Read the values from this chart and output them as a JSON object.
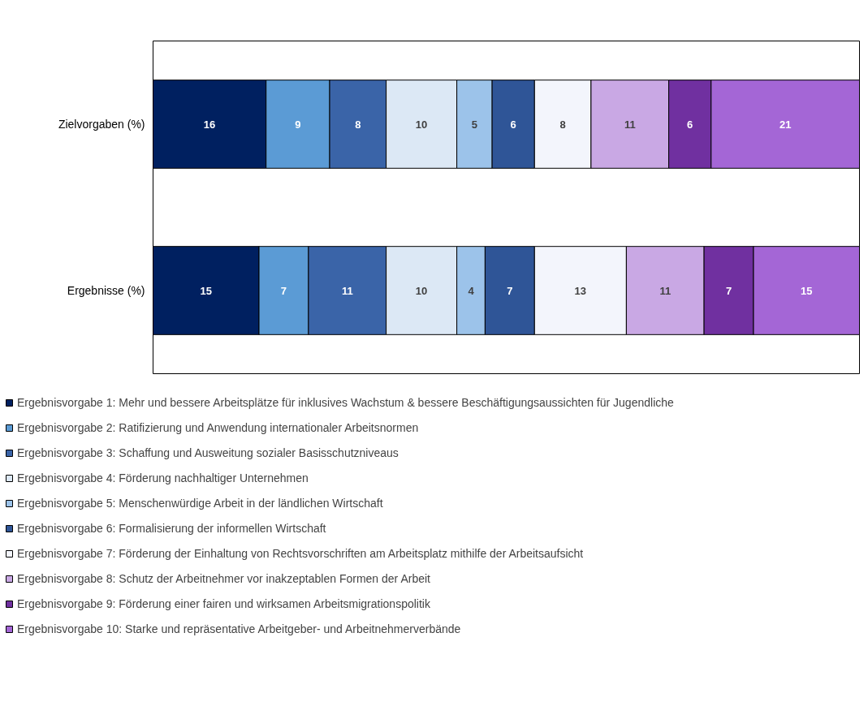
{
  "chart_data": {
    "type": "bar",
    "orientation": "horizontal",
    "stacked": true,
    "data_labels": true,
    "legend": "bottom",
    "categories": [
      "Zielvorgaben (%)",
      "Ergebnisse (%)"
    ],
    "series": [
      {
        "name": "Ergebnisvorgabe 1: Mehr und bessere Arbeitsplätze für inklusives Wachstum & bessere Beschäftigungsaussichten für Jugendliche",
        "color": "#002060",
        "values": [
          16,
          15
        ]
      },
      {
        "name": "Ergebnisvorgabe 2: Ratifizierung und Anwendung internationaler Arbeitsnormen",
        "color": "#5b9bd5",
        "values": [
          9,
          7
        ]
      },
      {
        "name": "Ergebnisvorgabe 3: Schaffung und Ausweitung sozialer Basisschutzniveaus",
        "color": "#3a64a8",
        "values": [
          8,
          11
        ]
      },
      {
        "name": "Ergebnisvorgabe 4: Förderung nachhaltiger Unternehmen",
        "color": "#dce8f5",
        "values": [
          10,
          10
        ]
      },
      {
        "name": "Ergebnisvorgabe 5: Menschenwürdige Arbeit in der ländlichen Wirtschaft",
        "color": "#9cc3ea",
        "values": [
          5,
          4
        ]
      },
      {
        "name": "Ergebnisvorgabe 6: Formalisierung der informellen Wirtschaft",
        "color": "#2f5597",
        "values": [
          6,
          7
        ]
      },
      {
        "name": "Ergebnisvorgabe 7: Förderung der Einhaltung von Rechtsvorschriften am Arbeitsplatz mithilfe der Arbeitsaufsicht",
        "color": "#f3f5fc",
        "values": [
          8,
          13
        ]
      },
      {
        "name": "Ergebnisvorgabe 8: Schutz der Arbeitnehmer vor inakzeptablen Formen der Arbeit",
        "color": "#c9a8e4",
        "values": [
          11,
          11
        ]
      },
      {
        "name": "Ergebnisvorgabe 9: Förderung einer fairen und wirksamen Arbeitsmigrationspolitik",
        "color": "#7030a0",
        "values": [
          6,
          7
        ]
      },
      {
        "name": "Ergebnisvorgabe 10: Starke und repräsentative Arbeitgeber- und Arbeitnehmerverbände",
        "color": "#a466d6",
        "values": [
          21,
          15
        ]
      }
    ]
  }
}
